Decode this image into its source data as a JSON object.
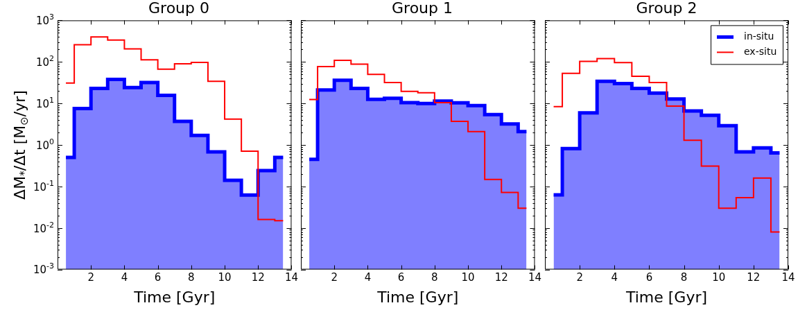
{
  "chart_data": [
    {
      "type": "step",
      "title": "Group 0",
      "xlabel": "Time [Gyr]",
      "ylabel": "ΔM$_{*}$/Δt [M$_{⊙}$/yr]",
      "log": "y",
      "xlim": [
        0,
        14
      ],
      "xticks": [
        2,
        4,
        6,
        8,
        10,
        12,
        14
      ],
      "ylim": [
        0.001,
        1000
      ],
      "yticks": [
        {
          "value": 0.001,
          "label": "10$^{-3}$"
        },
        {
          "value": 0.01,
          "label": "10$^{-2}$"
        },
        {
          "value": 0.1,
          "label": "10$^{-1}$"
        },
        {
          "value": 1,
          "label": "10$^{0}$"
        },
        {
          "value": 10,
          "label": "10$^{1}$"
        },
        {
          "value": 100,
          "label": "10$^{2}$"
        },
        {
          "value": 1000,
          "label": "10$^{3}$"
        }
      ],
      "x": [
        0.5,
        1,
        2,
        3,
        4,
        5,
        6,
        7,
        8,
        9,
        10,
        11,
        12,
        13,
        13.5
      ],
      "series": [
        {
          "type": "area",
          "color": "#0000ff",
          "x": [
            0.5,
            1,
            1,
            2,
            2,
            3,
            3,
            4,
            4,
            5,
            5,
            6,
            6,
            7,
            7,
            8,
            8,
            9,
            9,
            10,
            10,
            11,
            11,
            12,
            12,
            13,
            13,
            13.5
          ],
          "values": [
            0.5,
            0.5,
            7.5,
            7.5,
            23,
            23,
            38,
            38,
            24,
            24,
            32,
            32,
            15.6,
            15.6,
            3.7,
            3.7,
            1.7,
            1.7,
            0.68,
            0.68,
            0.14,
            0.14,
            0.062,
            0.062,
            0.24,
            0.24,
            0.5,
            0.5
          ]
        },
        {
          "color": "#ff0000",
          "values": [
            31,
            260,
            400,
            336,
            205,
            112,
            67,
            90,
            97,
            34,
            4.2,
            0.71,
            0.016,
            0.015,
            0.015
          ]
        }
      ]
    },
    {
      "type": "step",
      "title": "Group 1",
      "xlabel": "Time [Gyr]",
      "log": "y",
      "tick_labels": "x",
      "xlim": [
        0,
        14
      ],
      "xticks": [
        2,
        4,
        6,
        8,
        10,
        12,
        14
      ],
      "ylim": [
        0.001,
        1000
      ],
      "yticks": [
        {
          "value": 0.001,
          "label": null
        },
        {
          "value": 0.01,
          "label": null
        },
        {
          "value": 0.1,
          "label": null
        },
        {
          "value": 1,
          "label": null
        },
        {
          "value": 10,
          "label": null
        },
        {
          "value": 100,
          "label": null
        },
        {
          "value": 1000,
          "label": null
        }
      ],
      "x": [
        0.5,
        1,
        2,
        3,
        4,
        5,
        6,
        7,
        8,
        9,
        10,
        11,
        12,
        13,
        13.5
      ],
      "series": [
        {
          "type": "area",
          "color": "#0000ff",
          "x": [
            0.5,
            1,
            1,
            2,
            2,
            3,
            3,
            4,
            4,
            5,
            5,
            6,
            6,
            7,
            7,
            8,
            8,
            9,
            9,
            10,
            10,
            11,
            11,
            12,
            12,
            13,
            13,
            13.5
          ],
          "values": [
            0.45,
            0.45,
            21,
            21,
            36,
            36,
            23,
            23,
            12.5,
            12.5,
            13.3,
            13.3,
            10.4,
            10.4,
            10,
            10,
            11.4,
            11.4,
            10.3,
            10.3,
            8.9,
            8.9,
            5.4,
            5.4,
            3.2,
            3.2,
            2.1,
            2.1
          ]
        },
        {
          "color": "#ff0000",
          "values": [
            12.4,
            77,
            109,
            88,
            50,
            32,
            19.6,
            18,
            10.4,
            3.7,
            2.1,
            0.148,
            0.072,
            0.03,
            0.03
          ]
        }
      ]
    },
    {
      "type": "step",
      "title": "Group 2",
      "xlabel": "Time [Gyr]",
      "log": "y",
      "tick_labels": "x",
      "legend": "top right",
      "xlim": [
        0,
        14
      ],
      "xticks": [
        2,
        4,
        6,
        8,
        10,
        12,
        14
      ],
      "ylim": [
        0.001,
        1000
      ],
      "yticks": [
        {
          "value": 0.001,
          "label": null
        },
        {
          "value": 0.01,
          "label": null
        },
        {
          "value": 0.1,
          "label": null
        },
        {
          "value": 1,
          "label": null
        },
        {
          "value": 10,
          "label": null
        },
        {
          "value": 100,
          "label": null
        },
        {
          "value": 1000,
          "label": null
        }
      ],
      "x": [
        0.5,
        1,
        2,
        3,
        4,
        5,
        6,
        7,
        8,
        9,
        10,
        11,
        12,
        13,
        13.5
      ],
      "series": [
        {
          "type": "area",
          "name": "in-situ",
          "color": "#0000ff",
          "x": [
            0.5,
            1,
            1,
            2,
            2,
            3,
            3,
            4,
            4,
            5,
            5,
            6,
            6,
            7,
            7,
            8,
            8,
            9,
            9,
            10,
            10,
            11,
            11,
            12,
            12,
            13,
            13,
            13.5
          ],
          "values": [
            0.063,
            0.063,
            0.82,
            0.82,
            5.9,
            5.9,
            34,
            34,
            30,
            30,
            23,
            23,
            17.8,
            17.8,
            12.8,
            12.8,
            6.6,
            6.6,
            5.2,
            5.2,
            2.9,
            2.9,
            0.68,
            0.68,
            0.85,
            0.85,
            0.64,
            0.64
          ]
        },
        {
          "name": "ex-situ",
          "color": "#ff0000",
          "values": [
            8.4,
            53,
            103,
            120,
            96,
            45,
            32,
            8.6,
            1.3,
            0.31,
            0.03,
            0.054,
            0.16,
            0.008,
            0.008
          ]
        }
      ]
    }
  ]
}
